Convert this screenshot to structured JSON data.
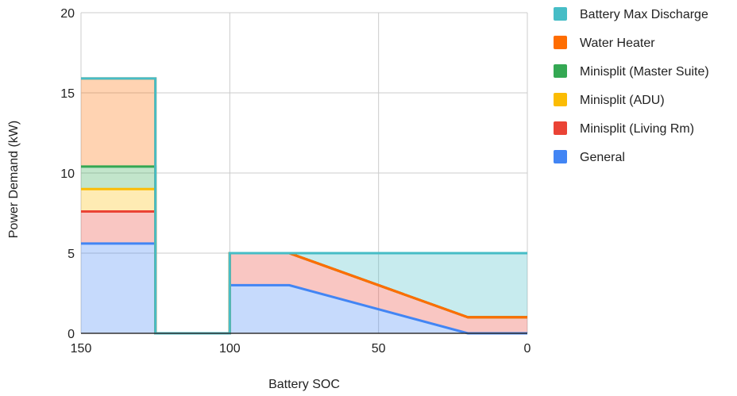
{
  "chart_data": {
    "type": "area",
    "xlabel": "Battery SOC",
    "ylabel": "Power Demand (kW)",
    "xlim": [
      150,
      0
    ],
    "ylim": [
      0,
      20
    ],
    "x_reversed": true,
    "x_ticks": [
      "150",
      "100",
      "50",
      "0"
    ],
    "y_ticks": [
      "0",
      "5",
      "10",
      "15",
      "20"
    ],
    "grid": true,
    "legend_position": "top-right",
    "series": [
      {
        "name": "Battery Max Discharge",
        "color": "#46BDC6",
        "points": [
          [
            150,
            15.9
          ],
          [
            125,
            15.9
          ],
          [
            125,
            0
          ],
          [
            100,
            0
          ],
          [
            100,
            5
          ],
          [
            0,
            5
          ]
        ]
      },
      {
        "name": "Water Heater",
        "color": "#FF6D01",
        "points": [
          [
            150,
            15.9
          ],
          [
            125,
            15.9
          ],
          [
            125,
            0
          ],
          [
            100,
            0
          ],
          [
            100,
            5
          ],
          [
            80,
            5
          ],
          [
            20,
            1
          ],
          [
            0,
            1
          ]
        ]
      },
      {
        "name": "Minisplit (Master Suite)",
        "color": "#34A853",
        "points": [
          [
            150,
            10.4
          ],
          [
            125,
            10.4
          ],
          [
            125,
            0
          ],
          [
            100,
            0
          ],
          [
            100,
            5
          ],
          [
            80,
            5
          ],
          [
            20,
            1
          ],
          [
            0,
            1
          ]
        ]
      },
      {
        "name": "Minisplit (ADU)",
        "color": "#FBBC04",
        "points": [
          [
            150,
            9
          ],
          [
            125,
            9
          ],
          [
            125,
            0
          ],
          [
            100,
            0
          ],
          [
            100,
            5
          ],
          [
            80,
            5
          ],
          [
            20,
            1
          ],
          [
            0,
            1
          ]
        ]
      },
      {
        "name": "Minisplit (Living Rm)",
        "color": "#EA4335",
        "points": [
          [
            150,
            7.6
          ],
          [
            125,
            7.6
          ],
          [
            125,
            0
          ],
          [
            100,
            0
          ],
          [
            100,
            5
          ],
          [
            80,
            5
          ],
          [
            20,
            1
          ],
          [
            0,
            1
          ]
        ]
      },
      {
        "name": "General",
        "color": "#4285F4",
        "points": [
          [
            150,
            5.6
          ],
          [
            125,
            5.6
          ],
          [
            125,
            0
          ],
          [
            100,
            0
          ],
          [
            100,
            3
          ],
          [
            80,
            3
          ],
          [
            20,
            0
          ],
          [
            0,
            0
          ]
        ]
      }
    ]
  }
}
